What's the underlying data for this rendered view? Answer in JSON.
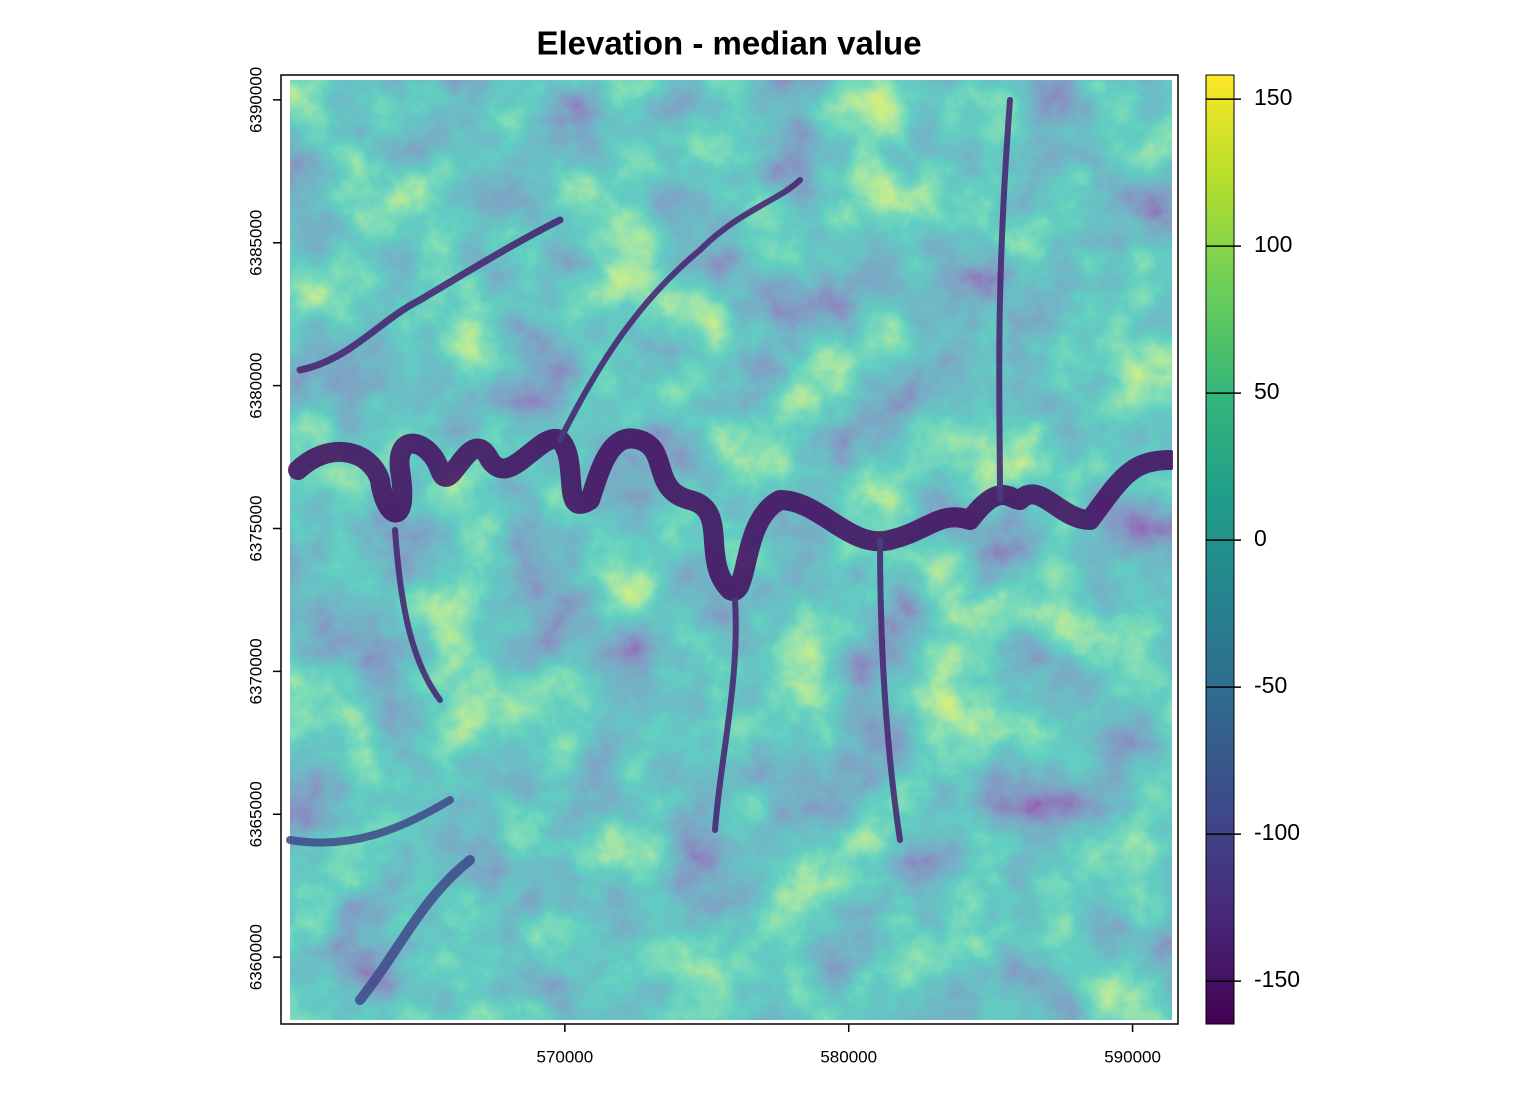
{
  "chart_data": {
    "type": "raster",
    "title": "Elevation - median value",
    "xlim": [
      560000,
      591600
    ],
    "xticks": [
      570000,
      580000,
      590000
    ],
    "ylim": [
      6357660,
      6390870
    ],
    "yticks": [
      6360000,
      6365000,
      6370000,
      6375000,
      6380000,
      6385000,
      6390000
    ],
    "colorbar": {
      "lim": [
        -164.6,
        158.2
      ],
      "ticks": [
        -150,
        -100,
        -50,
        0,
        50,
        100,
        150
      ],
      "colormap": [
        "#440154",
        "#482878",
        "#3e4989",
        "#31688e",
        "#26828e",
        "#1f9e89",
        "#35b779",
        "#6ece58",
        "#b5de2b",
        "#fde725"
      ]
    }
  }
}
